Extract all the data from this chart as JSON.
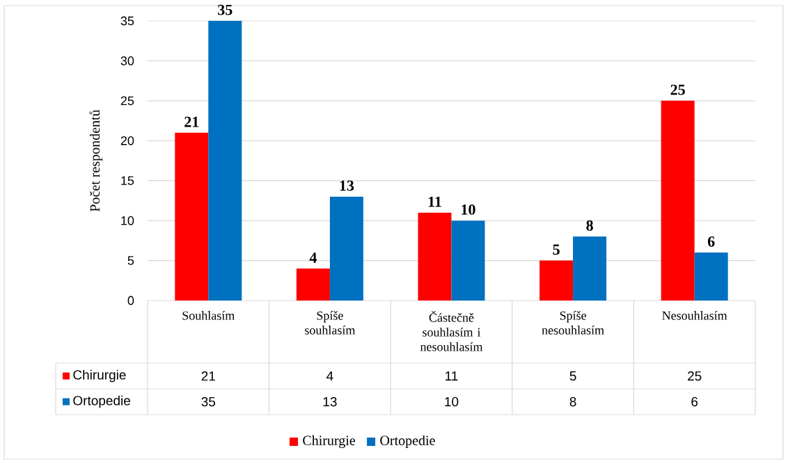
{
  "chart_data": {
    "type": "bar",
    "ylabel": "Počet respondentů",
    "categories": [
      "Souhlasím",
      "Spíše souhlasím",
      "Částečně souhlasím i nesouhlasím",
      "Spíše nesouhlasím",
      "Nesouhlasím"
    ],
    "series": [
      {
        "name": "Chirurgie",
        "color": "#ff0000",
        "values": [
          21,
          4,
          11,
          5,
          25
        ],
        "value_labels": [
          "21",
          "4",
          "11",
          "5",
          "25"
        ]
      },
      {
        "name": "Ortopedie",
        "color": "#0070c0",
        "values": [
          35,
          13,
          10,
          8,
          6
        ],
        "value_labels": [
          "35",
          "13",
          "10",
          "8",
          "6"
        ]
      }
    ],
    "ylim": [
      0,
      35
    ],
    "yticks": [
      0,
      5,
      10,
      15,
      20,
      25,
      30,
      35
    ],
    "grid": "y",
    "legend": "bottom",
    "data_labels": true
  }
}
